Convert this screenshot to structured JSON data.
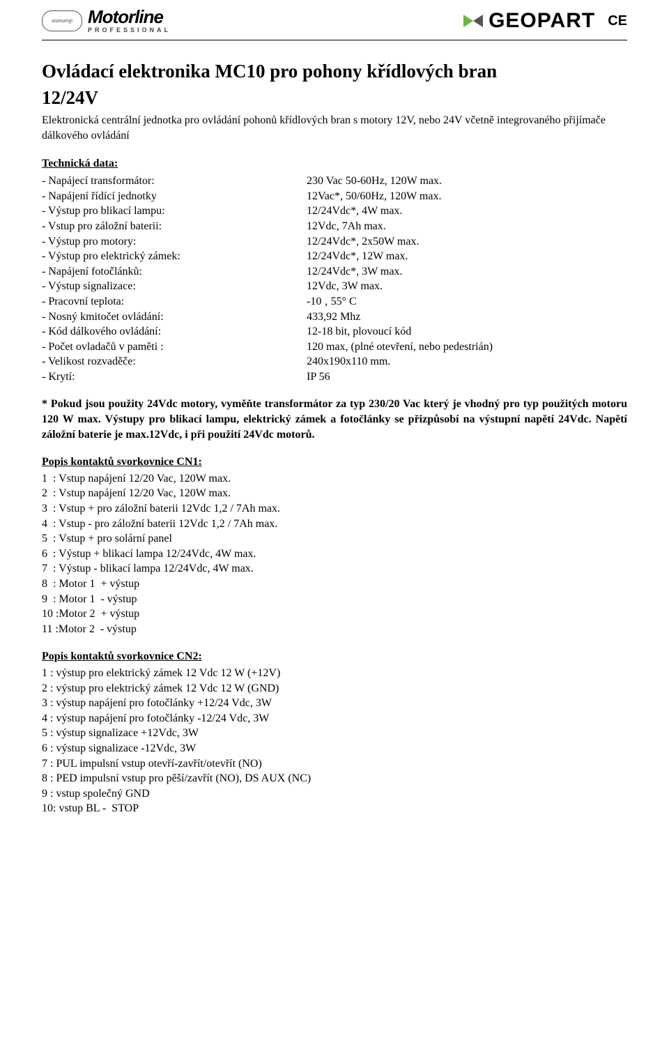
{
  "header": {
    "logo_left_badge": "stateurop",
    "logo_left_name": "Motorline",
    "logo_left_sub": "PROFESSIONAL",
    "logo_right": "GEOPART",
    "ce": "CE"
  },
  "title": {
    "line1": "Ovládací elektronika MC10 pro pohony křídlových bran",
    "line2": "12/24V"
  },
  "intro": "Elektronická centrální jednotka pro ovládání pohonů křídlových bran s motory 12V, nebo 24V včetně integrovaného přijímače dálkového ovládání",
  "tech_heading": "Technická data:",
  "specs": [
    {
      "label": "- Napájecí transformátor:",
      "value": " 230 Vac 50-60Hz, 120W max."
    },
    {
      "label": "- Napájení řídící jednotky",
      "value": "12Vac*, 50/60Hz, 120W max."
    },
    {
      "label": "- Výstup pro blikací lampu:",
      "value": "12/24Vdc*, 4W max."
    },
    {
      "label": "- Vstup pro záložní baterii:",
      "value": "12Vdc, 7Ah max."
    },
    {
      "label": "- Výstup pro motory:",
      "value": "12/24Vdc*, 2x50W max."
    },
    {
      "label": "- Výstup pro elektrický zámek:",
      "value": "12/24Vdc*, 12W max."
    },
    {
      "label": "- Napájení fotočlánků:",
      "value": "12/24Vdc*, 3W max."
    },
    {
      "label": "- Výstup signalizace:",
      "value": "12Vdc, 3W max."
    },
    {
      "label": "- Pracovní teplota:",
      "value": "-10 ‚ 55° C"
    },
    {
      "label": "- Nosný kmitočet ovládání:",
      "value": "433,92 Mhz"
    },
    {
      "label": "- Kód dálkového ovládání:",
      "value": "12-18 bit, plovoucí kód"
    },
    {
      "label": "- Počet ovladačů v paměti :",
      "value": "120 max, (plné otevření, nebo pedestrián)"
    },
    {
      "label": "- Velikost rozvaděče:",
      "value": "240x190x110 mm."
    },
    {
      "label": "- Krytí:",
      "value": "IP 56"
    }
  ],
  "note": "* Pokud jsou použity 24Vdc motory, vyměňte transformátor za typ 230/20 Vac který je vhodný pro typ použitých motoru 120 W max. Výstupy pro blikací lampu, elektrický zámek a fotočlánky se přizpůsobí na výstupní napětí 24Vdc. Napětí záložní baterie je max.12Vdc, i při použití 24Vdc motorů.",
  "cn1_heading": "Popis kontaktů svorkovnice CN1:",
  "cn1": [
    "1  : Vstup napájení 12/20 Vac, 120W max.",
    "2  : Vstup napájení 12/20 Vac, 120W max.",
    "3  : Vstup + pro záložní baterii 12Vdc 1,2 / 7Ah max.",
    "4  : Vstup - pro záložní baterii 12Vdc 1,2 / 7Ah max.",
    "5  : Vstup + pro solární panel",
    "6  : Výstup + blikací lampa 12/24Vdc, 4W max.",
    "7  : Výstup - blikací lampa 12/24Vdc, 4W max.",
    "8  : Motor 1  + výstup",
    "9  : Motor 1  - výstup",
    "10 :Motor 2  + výstup",
    "11 :Motor 2  - výstup"
  ],
  "cn2_heading": "Popis kontaktů svorkovnice CN2:",
  "cn2": [
    "1 : výstup pro elektrický zámek 12 Vdc 12 W (+12V)",
    "2 : výstup pro elektrický zámek 12 Vdc 12 W (GND)",
    "3 : výstup napájení pro fotočlánky +12/24 Vdc, 3W",
    "4 : výstup napájení pro fotočlánky -12/24 Vdc, 3W",
    "5 : výstup signalizace +12Vdc, 3W",
    "6 : výstup signalizace -12Vdc, 3W",
    "7 : PUL impulsní vstup otevří-zavřít/otevřít (NO)",
    "8 : PED impulsní vstup pro pěší/zavřít (NO), DS AUX (NC)",
    "9 : vstup společný GND",
    "10: vstup BL -  STOP"
  ]
}
